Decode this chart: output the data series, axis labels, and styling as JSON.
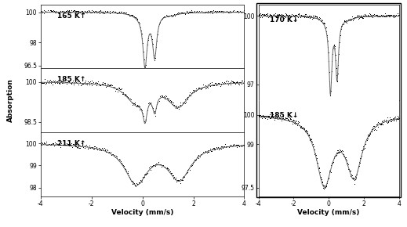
{
  "left_panel": {
    "xlabel": "Velocity (mm/s)",
    "ylabel": "Absorption",
    "xlim": [
      -4,
      4
    ],
    "xticks": [
      -4,
      -2,
      0,
      2,
      4
    ]
  },
  "right_panel": {
    "xlabel": "Velocity (mm/s)",
    "xlim": [
      -4,
      4
    ],
    "xticks": [
      -4,
      -2,
      0,
      2,
      4
    ]
  },
  "spectra": {
    "165K": {
      "label": "165 K↑",
      "ylim": [
        96.3,
        100.5
      ],
      "yticks": [
        96.5,
        98,
        100
      ],
      "yticklabels": [
        "96.5",
        "98",
        "100"
      ]
    },
    "185Kc": {
      "label": "185 K↑",
      "ylim": [
        98.1,
        100.5
      ],
      "yticks": [
        98.5,
        100
      ],
      "yticklabels": [
        "98.5",
        "100"
      ]
    },
    "211K": {
      "label": "211 K↑",
      "ylim": [
        97.6,
        100.5
      ],
      "yticks": [
        98,
        99,
        100
      ],
      "yticklabels": [
        "98",
        "99",
        "100"
      ]
    },
    "170K": {
      "label": "170 K↓",
      "ylim": [
        96.3,
        100.5
      ],
      "yticks": [
        97,
        100
      ],
      "yticklabels": [
        "97",
        "100"
      ]
    },
    "185Kw": {
      "label": "185 K↓",
      "ylim": [
        97.2,
        100.5
      ],
      "yticks": [
        97.5,
        99,
        100
      ],
      "yticklabels": [
        "97.5",
        "99",
        "100"
      ]
    }
  },
  "background_color": "#ffffff",
  "noise_amp": 0.045
}
